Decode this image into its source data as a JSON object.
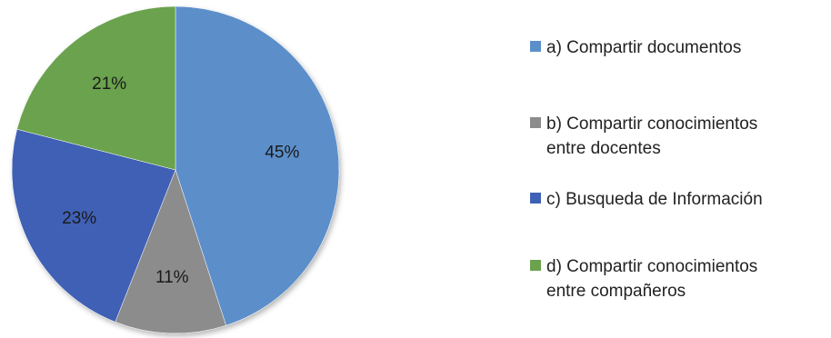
{
  "chart_data": {
    "type": "pie",
    "title": "",
    "series": [
      {
        "categories": [
          "a) Compartir documentos",
          "b) Compartir conocimientos\nentre docentes",
          "c) Busqueda de Información",
          "d) Compartir conocimientos\nentre compañeros"
        ],
        "values": [
          45,
          11,
          23,
          21
        ],
        "labels": [
          "45%",
          "11%",
          "23%",
          "21%"
        ]
      }
    ],
    "colors": [
      "#5b8fca",
      "#8c8c8c",
      "#3f61b5",
      "#6aa24d"
    ],
    "legend_position": "right"
  }
}
